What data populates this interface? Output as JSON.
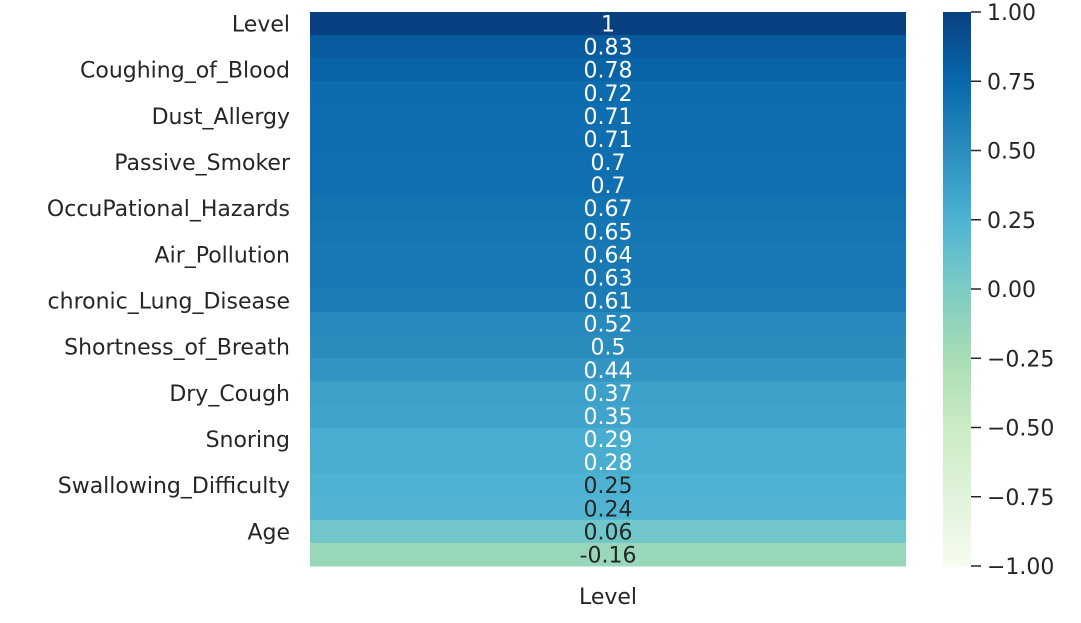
{
  "chart_data": {
    "type": "heatmap",
    "columns": [
      "Level"
    ],
    "rows": [
      "Level",
      "",
      "Coughing_of_Blood",
      "",
      "Dust_Allergy",
      "",
      "Passive_Smoker",
      "",
      "OccuPational_Hazards",
      "",
      "Air_Pollution",
      "",
      "chronic_Lung_Disease",
      "",
      "Shortness_of_Breath",
      "",
      "Dry_Cough",
      "",
      "Snoring",
      "",
      "Swallowing_Difficulty",
      "",
      "Age",
      ""
    ],
    "values": [
      1,
      0.83,
      0.78,
      0.72,
      0.71,
      0.71,
      0.7,
      0.7,
      0.67,
      0.65,
      0.64,
      0.63,
      0.61,
      0.52,
      0.5,
      0.44,
      0.37,
      0.35,
      0.29,
      0.28,
      0.25,
      0.24,
      0.06,
      -0.16
    ],
    "value_labels": [
      "1",
      "0.83",
      "0.78",
      "0.72",
      "0.71",
      "0.71",
      "0.7",
      "0.7",
      "0.67",
      "0.65",
      "0.64",
      "0.63",
      "0.61",
      "0.52",
      "0.5",
      "0.44",
      "0.37",
      "0.35",
      "0.29",
      "0.28",
      "0.25",
      "0.24",
      "0.06",
      "-0.16"
    ],
    "xlabel": "Level",
    "colormap": "GnBu",
    "vmin": -1,
    "vmax": 1,
    "colorbar_ticks": [
      1,
      0.75,
      0.5,
      0.25,
      0,
      -0.25,
      -0.5,
      -0.75,
      -1
    ],
    "colorbar_tick_labels": [
      "1.00",
      "0.75",
      "0.50",
      "0.25",
      "0.00",
      "−0.25",
      "−0.50",
      "−0.75",
      "−1.00"
    ],
    "grid": false,
    "legend": "colorbar-right"
  }
}
